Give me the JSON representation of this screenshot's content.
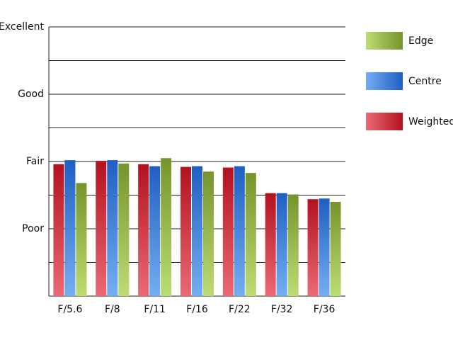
{
  "chart_data": {
    "type": "bar",
    "categories": [
      "F/5.6",
      "F/8",
      "F/11",
      "F/16",
      "F/22",
      "F/32",
      "F/36"
    ],
    "series": [
      {
        "name": "Weighted",
        "gradient": [
          "#b3121f",
          "#ea6a74"
        ],
        "values": [
          1.96,
          2.01,
          1.96,
          1.92,
          1.91,
          1.53,
          1.44
        ]
      },
      {
        "name": "Centre",
        "gradient": [
          "#1f5fc2",
          "#74aef2"
        ],
        "values": [
          2.02,
          2.02,
          1.93,
          1.93,
          1.93,
          1.53,
          1.45
        ]
      },
      {
        "name": "Edge",
        "gradient": [
          "#76942c",
          "#bcdc74"
        ],
        "values": [
          1.68,
          1.97,
          2.05,
          1.85,
          1.83,
          1.51,
          1.4
        ]
      }
    ],
    "ylim": [
      0,
      4
    ],
    "yticks": [
      {
        "value": 1,
        "label": "Poor"
      },
      {
        "value": 2,
        "label": "Fair"
      },
      {
        "value": 3,
        "label": "Good"
      },
      {
        "value": 4,
        "label": "Excellent"
      }
    ],
    "minor_yticks": [
      0.5,
      1.5,
      2.5,
      3.5
    ],
    "grid": true,
    "legend": "right"
  }
}
